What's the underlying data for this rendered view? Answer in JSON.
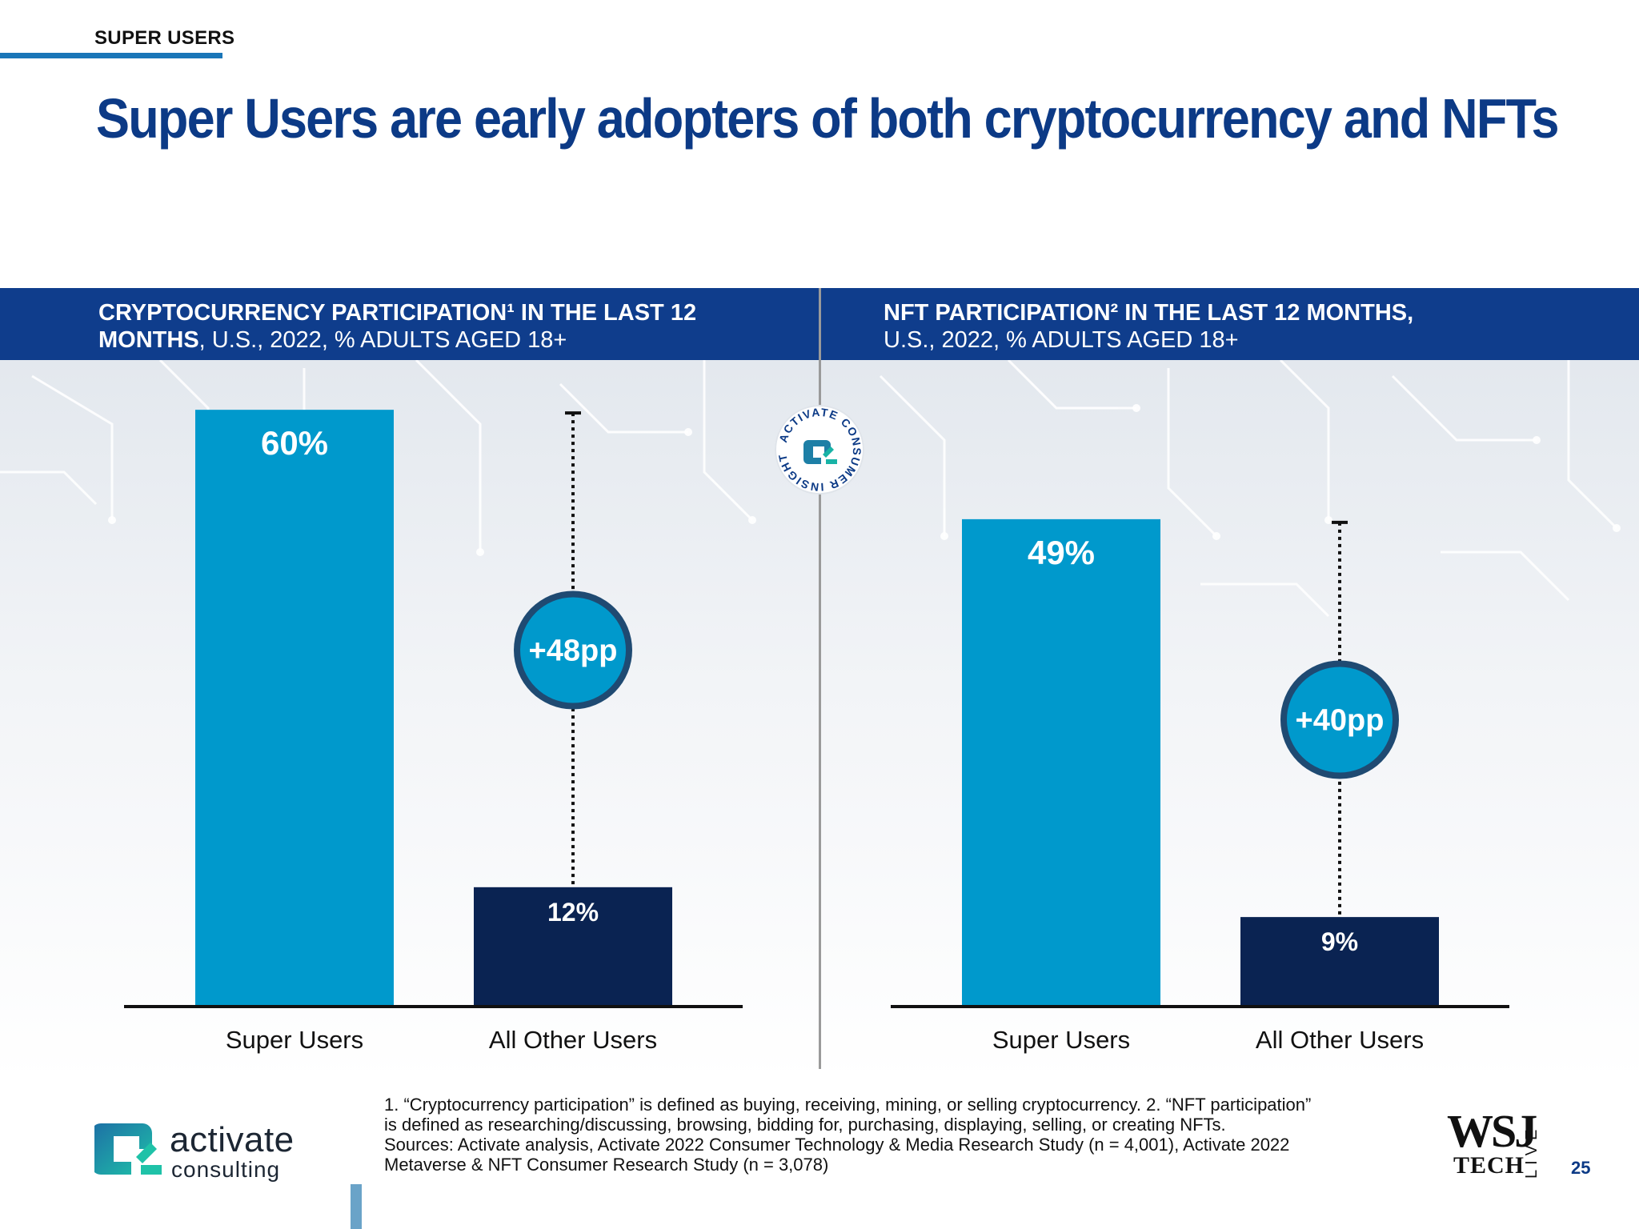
{
  "header": {
    "section_label": "SUPER USERS",
    "title": "Super Users are early adopters of both cryptocurrency and NFTs"
  },
  "colors": {
    "super_users": "#0099cc",
    "all_other_users": "#0a2352",
    "header_band": "#0f3d8c",
    "title": "#0c3a86",
    "callout_ring": "#1f4a72"
  },
  "panels": [
    {
      "heading_bold_1": "CRYPTOCURRENCY PARTICIPATION¹ IN THE LAST 12",
      "heading_bold_2": "MONTHS",
      "heading_rest_2": ", U.S., 2022, % ADULTS AGED 18+"
    },
    {
      "heading_bold_1": "NFT PARTICIPATION² IN THE LAST 12 MONTHS,",
      "heading_bold_2": "",
      "heading_rest_2": "U.S., 2022, % ADULTS AGED 18+"
    }
  ],
  "chart_data": [
    {
      "type": "bar",
      "categories": [
        "Super Users",
        "All Other Users"
      ],
      "values": [
        60,
        12
      ],
      "value_labels": [
        "60%",
        "12%"
      ],
      "difference_label": "+48pp",
      "ylim": [
        0,
        65
      ]
    },
    {
      "type": "bar",
      "categories": [
        "Super Users",
        "All Other Users"
      ],
      "values": [
        49,
        9
      ],
      "value_labels": [
        "49%",
        "9%"
      ],
      "difference_label": "+40pp",
      "ylim": [
        0,
        65
      ]
    }
  ],
  "badge": {
    "ring_text": "ACTIVATE CONSUMER INSIGHT"
  },
  "footnote": {
    "line1": "1. “Cryptocurrency participation” is defined as buying, receiving, mining, or selling cryptocurrency.  2. “NFT participation”",
    "line2": "is defined as researching/discussing, browsing, bidding for, purchasing, displaying, selling, or creating NFTs.",
    "line3": "Sources: Activate analysis, Activate 2022 Consumer Technology & Media Research Study (n = 4,001), Activate 2022",
    "line4": "Metaverse & NFT Consumer Research Study (n = 3,078)"
  },
  "brand": {
    "name": "activate",
    "sub": "consulting"
  },
  "wsj": {
    "top": "WSJ",
    "bottom": "TECH",
    "side": "LIVE"
  },
  "page_number": "25"
}
